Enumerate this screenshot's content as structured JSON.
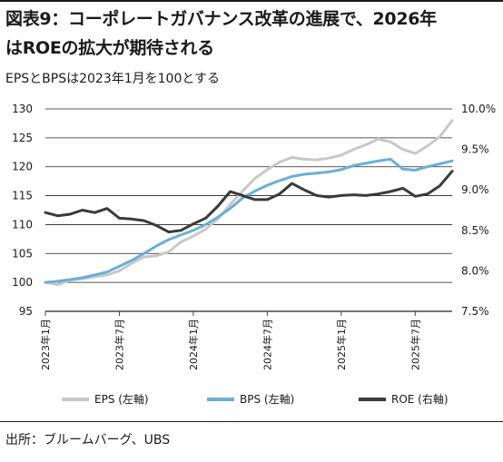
{
  "title_line1": "図表9：コーポレートガバナンス改革の進展で、2026年",
  "title_line2": "はROEの拡大が期待される",
  "source": "出所：ブルームバーグ、UBS",
  "colors": {
    "eps": "#c8c8c8",
    "bps": "#6aafd8",
    "roe": "#3a3a3a",
    "grid": "#222222",
    "axis": "#444444"
  },
  "chart_data": {
    "type": "line",
    "subtitle": "EPSとBPSは2023年1月を100とする",
    "x_range": [
      "2023-01",
      "2025-10"
    ],
    "x_ticks": [
      {
        "label": "2023年1月",
        "x": "2023-01"
      },
      {
        "label": "2023年7月",
        "x": "2023-07"
      },
      {
        "label": "2024年1月",
        "x": "2024-01"
      },
      {
        "label": "2024年7月",
        "x": "2024-07"
      },
      {
        "label": "2025年1月",
        "x": "2025-01"
      },
      {
        "label": "2025年7月",
        "x": "2025-07"
      }
    ],
    "y_left": {
      "min": 95,
      "max": 130,
      "ticks": [
        "95",
        "100",
        "105",
        "110",
        "115",
        "120",
        "125",
        "130"
      ]
    },
    "y_right": {
      "min": 7.5,
      "max": 10.0,
      "ticks": [
        "7.5%",
        "8.0%",
        "8.5%",
        "9.0%",
        "9.5%",
        "10.0%"
      ]
    },
    "grid": "horizontal",
    "legend_position": "bottom",
    "series": [
      {
        "name": "EPS (左軸)",
        "axis": "left",
        "color": "#c8c8c8",
        "points": [
          [
            "2023-01",
            100.0
          ],
          [
            "2023-02",
            99.6
          ],
          [
            "2023-03",
            100.4
          ],
          [
            "2023-04",
            100.6
          ],
          [
            "2023-05",
            101.0
          ],
          [
            "2023-06",
            101.3
          ],
          [
            "2023-07",
            102.0
          ],
          [
            "2023-08",
            103.3
          ],
          [
            "2023-09",
            104.4
          ],
          [
            "2023-10",
            104.6
          ],
          [
            "2023-11",
            105.3
          ],
          [
            "2023-12",
            107.0
          ],
          [
            "2024-01",
            108.0
          ],
          [
            "2024-02",
            109.2
          ],
          [
            "2024-03",
            111.0
          ],
          [
            "2024-04",
            113.5
          ],
          [
            "2024-05",
            115.8
          ],
          [
            "2024-06",
            118.0
          ],
          [
            "2024-07",
            119.5
          ],
          [
            "2024-08",
            120.8
          ],
          [
            "2024-09",
            121.6
          ],
          [
            "2024-10",
            121.3
          ],
          [
            "2024-11",
            121.2
          ],
          [
            "2024-12",
            121.5
          ],
          [
            "2025-01",
            122.0
          ],
          [
            "2025-02",
            123.0
          ],
          [
            "2025-03",
            123.8
          ],
          [
            "2025-04",
            124.8
          ],
          [
            "2025-05",
            124.3
          ],
          [
            "2025-06",
            123.0
          ],
          [
            "2025-07",
            122.3
          ],
          [
            "2025-08",
            123.6
          ],
          [
            "2025-09",
            125.2
          ],
          [
            "2025-10",
            128.0
          ]
        ]
      },
      {
        "name": "BPS (左軸)",
        "axis": "left",
        "color": "#6aafd8",
        "points": [
          [
            "2023-01",
            100.0
          ],
          [
            "2023-02",
            100.2
          ],
          [
            "2023-03",
            100.5
          ],
          [
            "2023-04",
            100.8
          ],
          [
            "2023-05",
            101.3
          ],
          [
            "2023-06",
            101.8
          ],
          [
            "2023-07",
            102.8
          ],
          [
            "2023-08",
            103.8
          ],
          [
            "2023-09",
            105.0
          ],
          [
            "2023-10",
            106.3
          ],
          [
            "2023-11",
            107.4
          ],
          [
            "2023-12",
            108.2
          ],
          [
            "2024-01",
            109.0
          ],
          [
            "2024-02",
            110.0
          ],
          [
            "2024-03",
            111.3
          ],
          [
            "2024-04",
            112.8
          ],
          [
            "2024-05",
            114.6
          ],
          [
            "2024-06",
            115.8
          ],
          [
            "2024-07",
            116.8
          ],
          [
            "2024-08",
            117.6
          ],
          [
            "2024-09",
            118.3
          ],
          [
            "2024-10",
            118.7
          ],
          [
            "2024-11",
            118.9
          ],
          [
            "2024-12",
            119.1
          ],
          [
            "2025-01",
            119.5
          ],
          [
            "2025-02",
            120.2
          ],
          [
            "2025-03",
            120.6
          ],
          [
            "2025-04",
            121.0
          ],
          [
            "2025-05",
            121.3
          ],
          [
            "2025-06",
            119.6
          ],
          [
            "2025-07",
            119.4
          ],
          [
            "2025-08",
            120.0
          ],
          [
            "2025-09",
            120.5
          ],
          [
            "2025-10",
            121.0
          ]
        ]
      },
      {
        "name": "ROE (右軸)",
        "axis": "right",
        "color": "#3a3a3a",
        "points": [
          [
            "2023-01",
            8.72
          ],
          [
            "2023-02",
            8.68
          ],
          [
            "2023-03",
            8.7
          ],
          [
            "2023-04",
            8.75
          ],
          [
            "2023-05",
            8.72
          ],
          [
            "2023-06",
            8.77
          ],
          [
            "2023-07",
            8.65
          ],
          [
            "2023-08",
            8.64
          ],
          [
            "2023-09",
            8.62
          ],
          [
            "2023-10",
            8.56
          ],
          [
            "2023-11",
            8.48
          ],
          [
            "2023-12",
            8.5
          ],
          [
            "2024-01",
            8.58
          ],
          [
            "2024-02",
            8.65
          ],
          [
            "2024-03",
            8.8
          ],
          [
            "2024-04",
            8.98
          ],
          [
            "2024-05",
            8.93
          ],
          [
            "2024-06",
            8.88
          ],
          [
            "2024-07",
            8.88
          ],
          [
            "2024-08",
            8.95
          ],
          [
            "2024-09",
            9.08
          ],
          [
            "2024-10",
            9.0
          ],
          [
            "2024-11",
            8.93
          ],
          [
            "2024-12",
            8.91
          ],
          [
            "2025-01",
            8.93
          ],
          [
            "2025-02",
            8.94
          ],
          [
            "2025-03",
            8.93
          ],
          [
            "2025-04",
            8.95
          ],
          [
            "2025-05",
            8.98
          ],
          [
            "2025-06",
            9.02
          ],
          [
            "2025-07",
            8.92
          ],
          [
            "2025-08",
            8.95
          ],
          [
            "2025-09",
            9.05
          ],
          [
            "2025-10",
            9.23
          ]
        ]
      }
    ]
  }
}
